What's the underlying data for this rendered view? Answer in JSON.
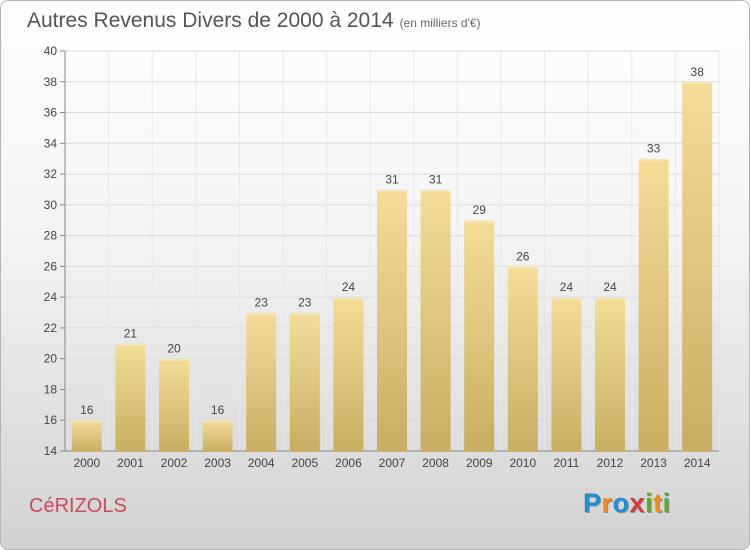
{
  "title": "Autres Revenus Divers de 2000 à 2014",
  "subtitle": "(en milliers d'€)",
  "commune": "CéRIZOLS",
  "logo": {
    "letters": [
      "P",
      "r",
      "o",
      "x",
      "i",
      "t",
      "i"
    ],
    "colors": [
      "#1f8fd8",
      "#f0891f",
      "#1f8fd8",
      "#d83a3a",
      "#5aab2e",
      "#f0891f",
      "#5aab2e"
    ]
  },
  "colors": {
    "bar_top": "#f5dd98",
    "bar_bottom": "#c9ad62",
    "commune": "#d04a5e"
  },
  "chart_data": {
    "type": "bar",
    "categories": [
      "2000",
      "2001",
      "2002",
      "2003",
      "2004",
      "2005",
      "2006",
      "2007",
      "2008",
      "2009",
      "2010",
      "2011",
      "2012",
      "2013",
      "2014"
    ],
    "values": [
      16,
      21,
      20,
      16,
      23,
      23,
      24,
      31,
      31,
      29,
      26,
      24,
      24,
      33,
      38
    ],
    "ylim": [
      14,
      40
    ],
    "yticks": [
      14,
      16,
      18,
      20,
      22,
      24,
      26,
      28,
      30,
      32,
      34,
      36,
      38,
      40
    ],
    "grid": true,
    "data_labels": true
  }
}
